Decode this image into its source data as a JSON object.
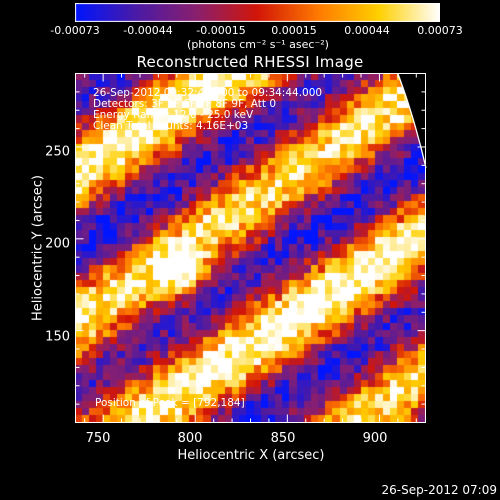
{
  "colors": {
    "background": "#000000",
    "frame": "#ffffff",
    "limb_line": "#ffffff",
    "colormap": [
      "#0015ff",
      "#4a1aa6",
      "#8a1f6e",
      "#d21608",
      "#ff7a00",
      "#ffd000",
      "#ffffff"
    ]
  },
  "colorbar": {
    "ticks": [
      "-0.00073",
      "-0.00044",
      "-0.00015",
      "0.00015",
      "0.00044",
      "0.00073"
    ],
    "unit_label": "(photons cm⁻² s⁻¹ asec⁻²)",
    "range": [
      -0.00073,
      0.00073
    ]
  },
  "chart_data": {
    "type": "heatmap",
    "title": "Reconstructed RHESSI Image",
    "xlabel": "Heliocentric X (arcsec)",
    "ylabel": "Heliocentric Y (arcsec)",
    "x_ticks": [
      "750",
      "800",
      "850",
      "900"
    ],
    "y_ticks": [
      "150",
      "200",
      "250"
    ],
    "xlim": [
      735,
      925
    ],
    "ylim": [
      100,
      290
    ],
    "grid_cells": [
      49,
      49
    ],
    "stripe_orientation": "diagonal, lower-left to upper-right",
    "annotations": [
      "26-Sep-2012 09:32:48.000 to 09:34:44.000",
      "Detectors: 3F 5F 6F 7F 8F 9F, Att 0",
      "Energy Range: 12.0 - 25.0 keV",
      "Clean    Total counts: 4.16E+03"
    ],
    "peak_label": "Position of Peak = [792,184]",
    "peak": [
      792,
      184
    ]
  },
  "footer": {
    "timestamp": "26-Sep-2012 07:09"
  }
}
